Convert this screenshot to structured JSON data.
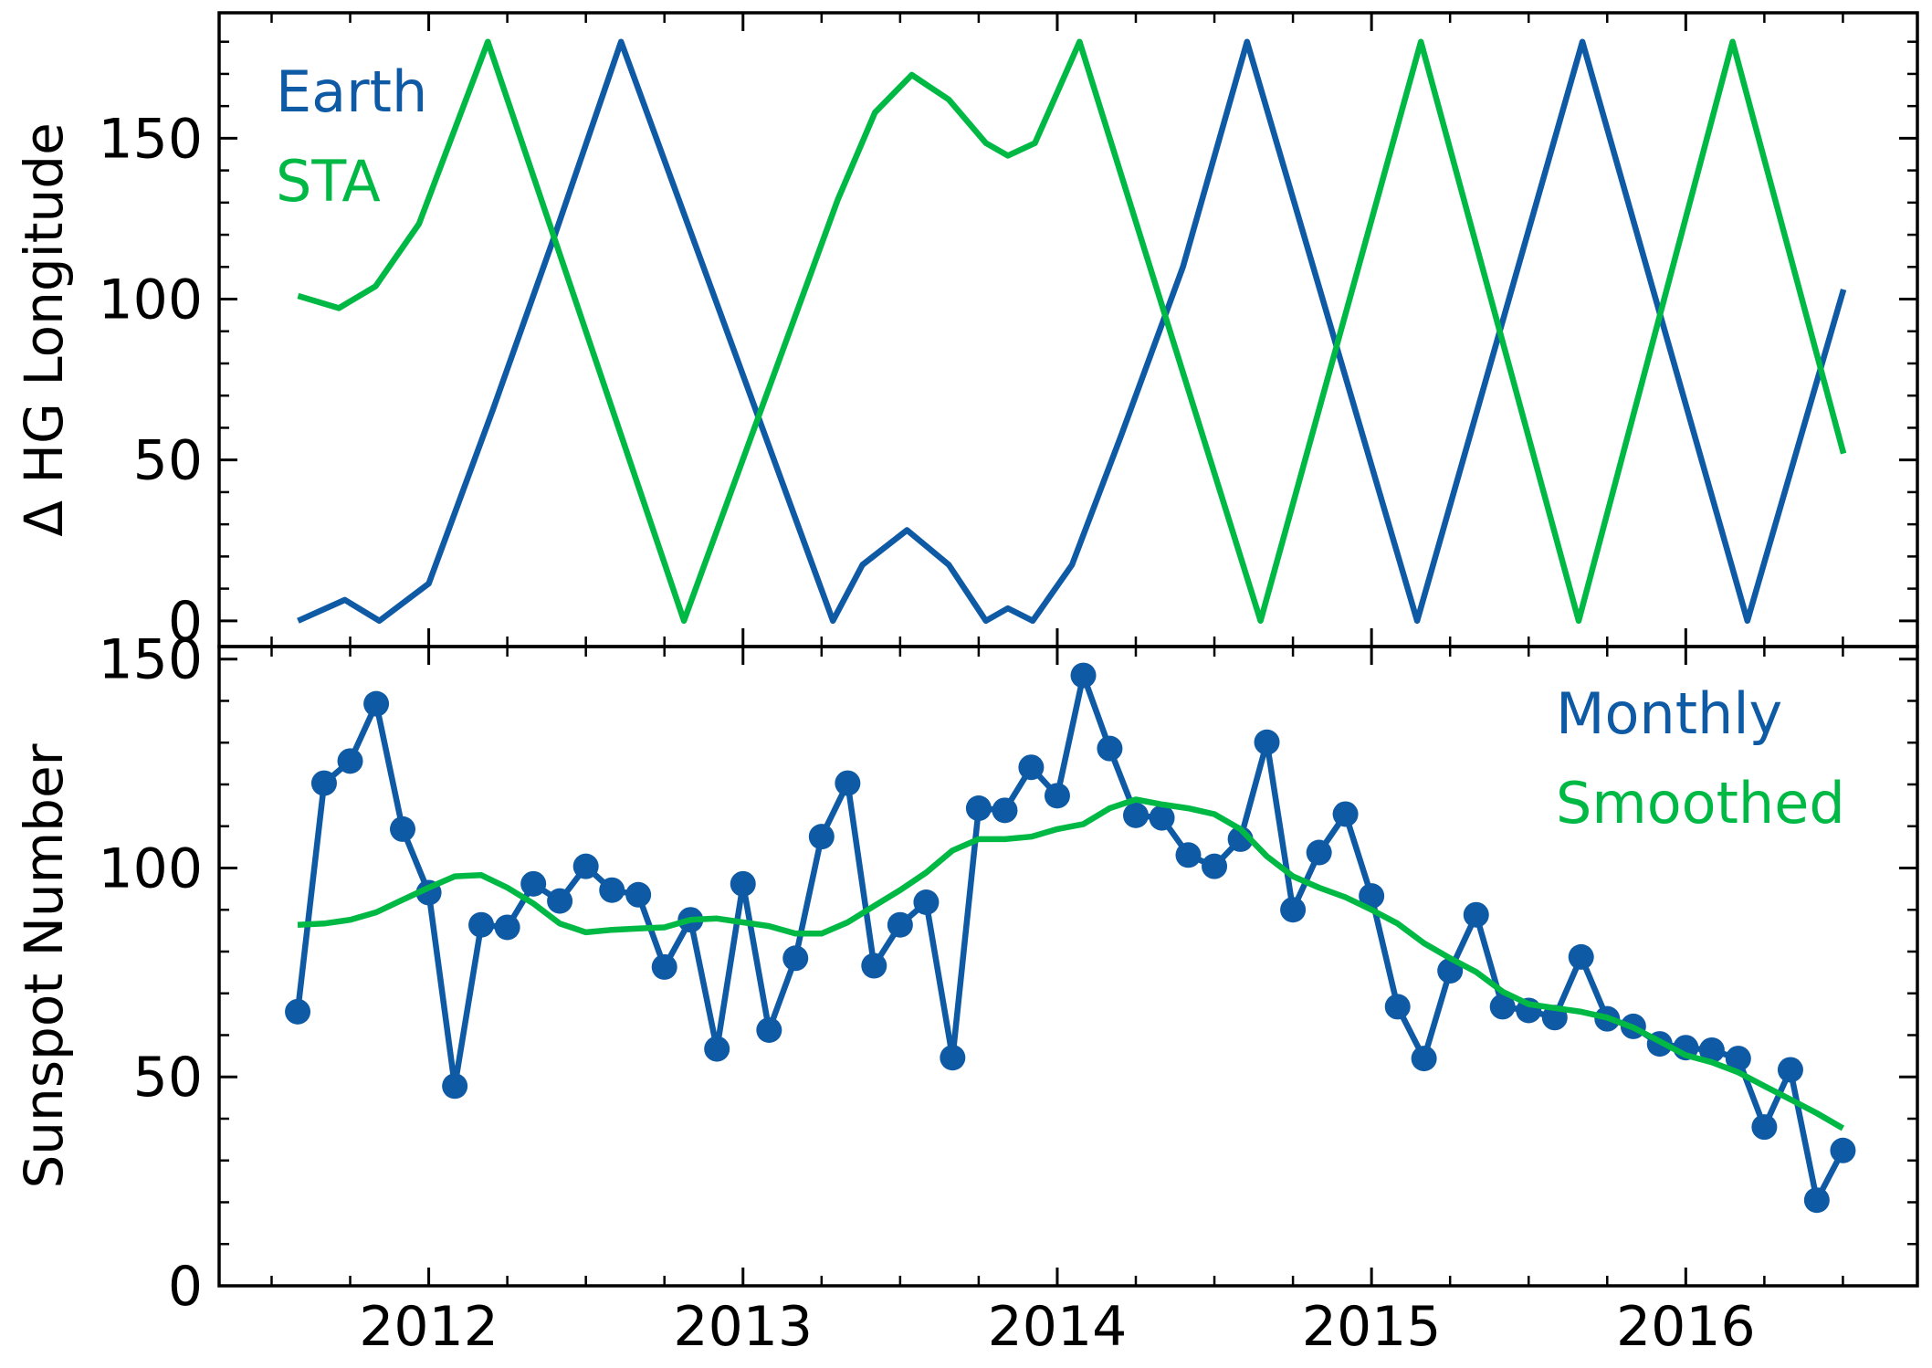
{
  "chart_data": [
    {
      "type": "line",
      "ylabel": "Δ HG Longitude",
      "legend": "upper left",
      "xlim": [
        2011.333,
        2016.737
      ],
      "xticks": [
        2012,
        2013,
        2014,
        2015,
        2016
      ],
      "ylim": [
        -8,
        189
      ],
      "yticks": [
        0,
        50,
        100,
        150
      ],
      "series": [
        {
          "name": "Earth",
          "color": "#0f5aa5",
          "x": [
            2011.584,
            2011.733,
            2011.843,
            2012.0,
            2012.204,
            2012.4,
            2012.612,
            2013.286,
            2013.38,
            2013.522,
            2013.655,
            2013.773,
            2013.843,
            2013.922,
            2014.047,
            2014.204,
            2014.4,
            2014.604,
            2015.145,
            2015.671,
            2016.196,
            2016.502
          ],
          "values": [
            0,
            6.5,
            0,
            11.6,
            65.6,
            119.6,
            180,
            0,
            17.4,
            28.2,
            17.4,
            0,
            3.9,
            0,
            17.4,
            57.8,
            110,
            180,
            0,
            180,
            0,
            103
          ]
        },
        {
          "name": "STA",
          "color": "#00b945",
          "x": [
            2011.584,
            2011.714,
            2011.831,
            2011.969,
            2012.188,
            2012.812,
            2013.302,
            2013.42,
            2013.537,
            2013.655,
            2013.773,
            2013.843,
            2013.929,
            2014.071,
            2014.647,
            2015.157,
            2015.659,
            2016.149,
            2016.502
          ],
          "values": [
            101,
            97.2,
            104,
            123.4,
            180,
            0,
            131,
            158,
            169.7,
            162,
            148.5,
            144.6,
            148.5,
            180,
            0,
            180,
            0,
            180,
            52
          ]
        }
      ]
    },
    {
      "type": "line",
      "ylabel": "Sunspot Number",
      "legend": "upper right",
      "xlim": [
        2011.333,
        2016.737
      ],
      "xticks": [
        2012,
        2013,
        2014,
        2015,
        2016
      ],
      "ylim": [
        0,
        153
      ],
      "yticks": [
        0,
        50,
        100,
        150
      ],
      "series": [
        {
          "name": "Monthly",
          "color": "#0f5aa5",
          "marker": "o",
          "x": [
            2011.583,
            2011.667,
            2011.75,
            2011.833,
            2011.917,
            2012,
            2012.083,
            2012.167,
            2012.25,
            2012.333,
            2012.417,
            2012.5,
            2012.583,
            2012.667,
            2012.75,
            2012.833,
            2012.917,
            2013,
            2013.083,
            2013.167,
            2013.25,
            2013.333,
            2013.417,
            2013.5,
            2013.583,
            2013.667,
            2013.75,
            2013.833,
            2013.917,
            2014,
            2014.083,
            2014.167,
            2014.25,
            2014.333,
            2014.417,
            2014.5,
            2014.583,
            2014.667,
            2014.75,
            2014.833,
            2014.917,
            2015,
            2015.083,
            2015.167,
            2015.25,
            2015.333,
            2015.417,
            2015.5,
            2015.583,
            2015.667,
            2015.75,
            2015.833,
            2015.917,
            2016,
            2016.083,
            2016.167,
            2016.25,
            2016.333,
            2016.417,
            2016.5
          ],
          "values": [
            65.6,
            120.3,
            125.6,
            139.3,
            109.3,
            94.1,
            47.8,
            86.4,
            85.8,
            96.2,
            92.1,
            100.4,
            94.7,
            93.6,
            76.3,
            87.6,
            56.7,
            96.2,
            61.2,
            78.4,
            107.5,
            120.3,
            76.6,
            86.4,
            91.8,
            54.6,
            114.3,
            113.8,
            124.1,
            117.3,
            146.1,
            128.6,
            112.6,
            112.0,
            103.1,
            100.4,
            106.9,
            130.1,
            90.0,
            103.7,
            112.9,
            93.3,
            66.8,
            54.4,
            75.4,
            88.8,
            66.8,
            65.9,
            64.2,
            78.7,
            63.9,
            62.1,
            57.9,
            57.0,
            56.4,
            54.4,
            38.0,
            51.7,
            20.5,
            32.4
          ]
        },
        {
          "name": "Smoothed",
          "color": "#00b945",
          "x": [
            2011.583,
            2011.667,
            2011.75,
            2011.833,
            2011.917,
            2012,
            2012.083,
            2012.167,
            2012.25,
            2012.333,
            2012.417,
            2012.5,
            2012.583,
            2012.667,
            2012.75,
            2012.833,
            2012.917,
            2013,
            2013.083,
            2013.167,
            2013.25,
            2013.333,
            2013.417,
            2013.5,
            2013.583,
            2013.667,
            2013.75,
            2013.833,
            2013.917,
            2014,
            2014.083,
            2014.167,
            2014.25,
            2014.333,
            2014.417,
            2014.5,
            2014.583,
            2014.667,
            2014.75,
            2014.833,
            2014.917,
            2015,
            2015.083,
            2015.167,
            2015.25,
            2015.333,
            2015.417,
            2015.5,
            2015.583,
            2015.667,
            2015.75,
            2015.833,
            2015.917,
            2016,
            2016.083,
            2016.167,
            2016.25,
            2016.333,
            2016.417,
            2016.5
          ],
          "values": [
            86.4,
            86.7,
            87.6,
            89.4,
            92.4,
            95.3,
            98.0,
            98.3,
            95.3,
            91.5,
            86.7,
            84.6,
            85.2,
            85.5,
            85.8,
            87.6,
            87.9,
            87.0,
            86.1,
            84.3,
            84.3,
            87.0,
            90.9,
            94.7,
            98.9,
            104.2,
            106.9,
            106.9,
            107.5,
            109.3,
            110.5,
            114.3,
            116.4,
            115.2,
            114.3,
            112.9,
            109.3,
            102.8,
            98.0,
            95.3,
            93.0,
            90.0,
            86.7,
            82.0,
            78.4,
            75.1,
            70.4,
            67.4,
            66.5,
            65.6,
            64.2,
            61.8,
            58.5,
            55.2,
            53.5,
            51.1,
            47.8,
            44.6,
            41.3,
            37.7
          ]
        }
      ]
    }
  ]
}
